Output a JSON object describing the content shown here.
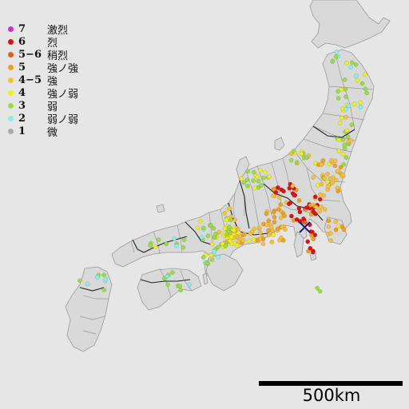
{
  "legend": [
    {
      "level": "7",
      "name": "激烈",
      "color": "#cc33cc"
    },
    {
      "level": "6",
      "name": "烈",
      "color": "#dd1111"
    },
    {
      "level": "5−6",
      "name": "稍烈",
      "color": "#e06020"
    },
    {
      "level": "5",
      "name": "強ノ強",
      "color": "#f0a020"
    },
    {
      "level": "4−5",
      "name": "強",
      "color": "#f5c040"
    },
    {
      "level": "4",
      "name": "強ノ弱",
      "color": "#eeee22"
    },
    {
      "level": "3",
      "name": "弱",
      "color": "#99dd44"
    },
    {
      "level": "2",
      "name": "弱ノ弱",
      "color": "#88eeee"
    },
    {
      "level": "1",
      "name": "微",
      "color": "#aaaaaa"
    }
  ],
  "map": {
    "land_color": "#d9d9d9",
    "sea_color": "#e6e6e6",
    "epicenter_icon": "x-mark-icon"
  },
  "scale": {
    "label": "500km"
  }
}
